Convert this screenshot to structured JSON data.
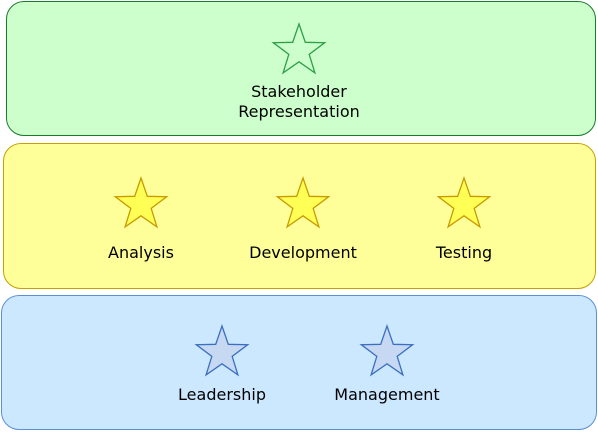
{
  "colors": {
    "top_fill": "#ccffcc",
    "top_border": "#1a7a2e",
    "mid_fill": "#ffff99",
    "mid_border": "#c8a000",
    "bot_fill": "#cce8ff",
    "bot_border": "#5b8fd6",
    "star_green_fill": "#ccffcc",
    "star_green_stroke": "#2e9e48",
    "star_yellow_fill": "#ffff55",
    "star_yellow_stroke": "#c89a00",
    "star_blue_fill": "#c6d8f2",
    "star_blue_stroke": "#3c6fc0"
  },
  "bands": {
    "top": {
      "nodes": [
        {
          "label": "Stakeholder\nRepresentation",
          "icon": "star-icon"
        }
      ]
    },
    "middle": {
      "nodes": [
        {
          "label": "Analysis",
          "icon": "star-icon"
        },
        {
          "label": "Development",
          "icon": "star-icon"
        },
        {
          "label": "Testing",
          "icon": "star-icon"
        }
      ]
    },
    "bottom": {
      "nodes": [
        {
          "label": "Leadership",
          "icon": "star-icon"
        },
        {
          "label": "Management",
          "icon": "star-icon"
        }
      ]
    }
  }
}
